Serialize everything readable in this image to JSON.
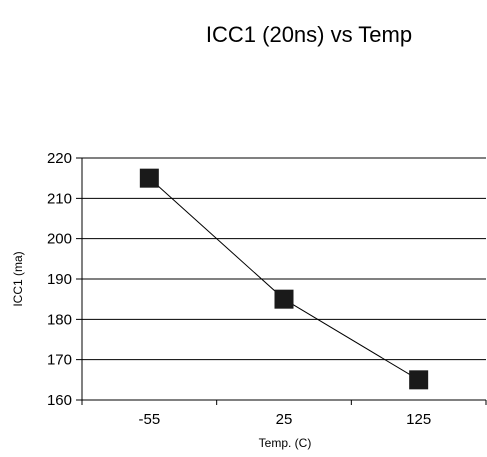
{
  "chart_data": {
    "type": "line",
    "title": "ICC1 (20ns) vs Temp",
    "xlabel": "Temp. (C)",
    "ylabel": "ICC1 (ma)",
    "categories": [
      "-55",
      "25",
      "125"
    ],
    "series": [
      {
        "values": [
          215,
          185,
          165
        ]
      }
    ],
    "ylim": [
      160,
      220
    ],
    "yticks": [
      160,
      170,
      180,
      190,
      200,
      210,
      220
    ],
    "grid": true,
    "legend": "none",
    "colors": {
      "line": "#000000",
      "marker": "#1a1a1a",
      "grid": "#000000"
    }
  }
}
